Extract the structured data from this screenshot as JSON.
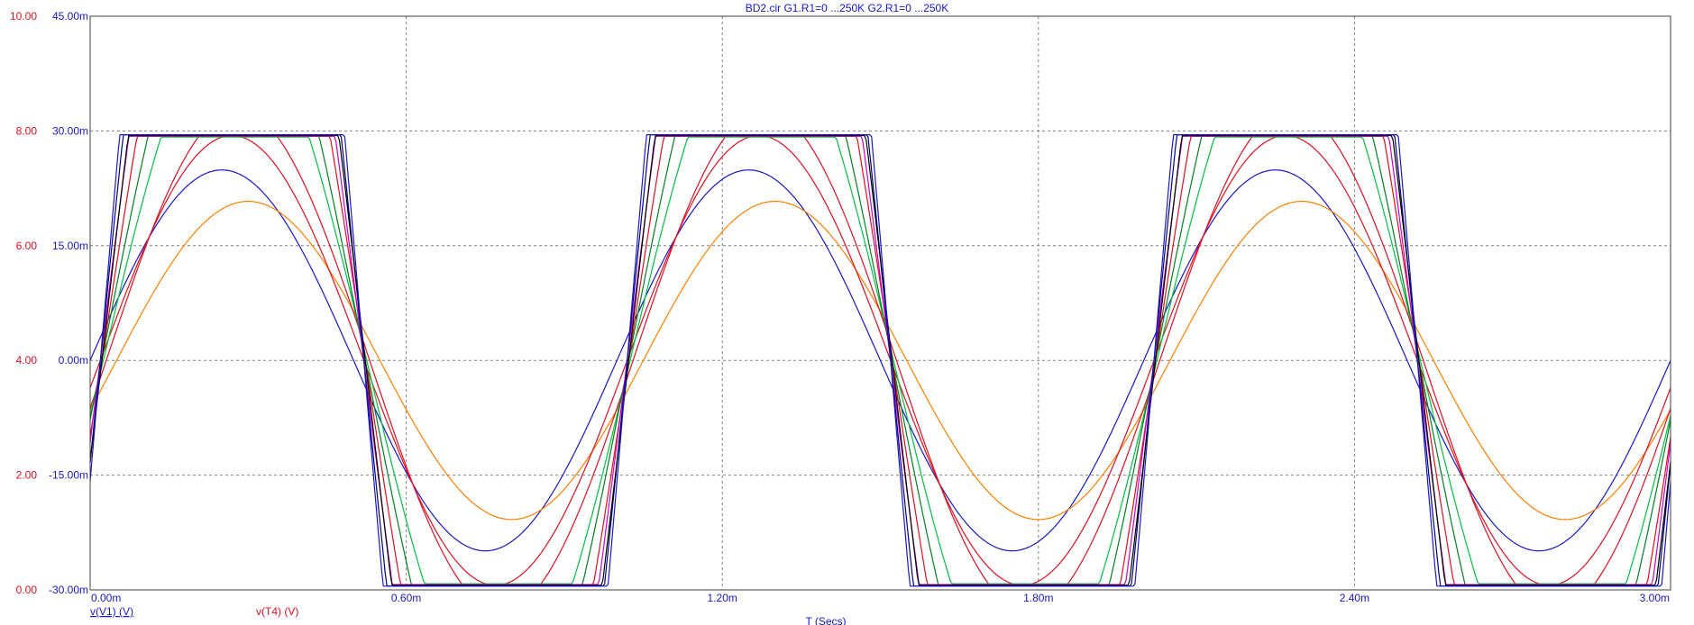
{
  "window": {
    "title": "BD2.cir G1.R1=0 ...250K G2.R1=0 ...250K"
  },
  "colors": {
    "left_axis": "#e01020",
    "right_axis": "#1818c8",
    "grid": "#808080",
    "frame": "#404040"
  },
  "chart_data": {
    "type": "line",
    "title": "BD2.cir G1.R1=0 ...250K G2.R1=0 ...250K",
    "xlabel": "T (Secs)",
    "x_range": [
      0,
      0.003
    ],
    "x_ticks": [
      "0.00m",
      "0.60m",
      "1.20m",
      "1.80m",
      "2.40m",
      "3.00m"
    ],
    "left_axis": {
      "range": [
        0,
        10
      ],
      "ticks": [
        "0.00",
        "2.00",
        "4.00",
        "6.00",
        "8.00",
        "10.00"
      ]
    },
    "right_axis": {
      "range": [
        -0.03,
        0.045
      ],
      "ticks": [
        "-30.00m",
        "-15.00m",
        "0.00m",
        "15.00m",
        "30.00m",
        "45.00m"
      ]
    },
    "grid": true,
    "frequency_hz": 1000,
    "legend": [
      {
        "label": "v(V1) (V)",
        "color": "#1818c8",
        "axis": "right"
      },
      {
        "label": "v(T4) (V)",
        "color": "#e01020",
        "axis": "left"
      }
    ],
    "series": [
      {
        "name": "v(V1) (V)",
        "color": "#1818c8",
        "axis": "right",
        "amplitude": 0.0249,
        "clip": 0.1,
        "phase_deg": 0
      },
      {
        "color": "#ff8000",
        "axis": "right",
        "amplitude": 0.0208,
        "clip": 0.1,
        "phase_deg": 18
      },
      {
        "color": "#e01020",
        "axis": "right",
        "amplitude": 0.0294,
        "clip": 0.1,
        "phase_deg": 7
      },
      {
        "color": "#e01020",
        "axis": "right",
        "amplitude": 0.0328,
        "clip": 0.0294,
        "phase_deg": 11
      },
      {
        "color": "#00c040",
        "axis": "right",
        "amplitude": 0.046,
        "clip": 0.0292,
        "phase_deg": 9
      },
      {
        "color": "#008020",
        "axis": "right",
        "amplitude": 0.056,
        "clip": 0.0294,
        "phase_deg": 8
      },
      {
        "color": "#e01020",
        "axis": "right",
        "amplitude": 0.072,
        "clip": 0.0293,
        "phase_deg": 8
      },
      {
        "color": "#cc00cc",
        "axis": "right",
        "amplitude": 0.088,
        "clip": 0.0293,
        "phase_deg": 7
      },
      {
        "color": "#000080",
        "axis": "right",
        "amplitude": 0.11,
        "clip": 0.0295,
        "phase_deg": 7
      },
      {
        "color": "#000000",
        "axis": "right",
        "amplitude": 0.095,
        "clip": 0.0294,
        "phase_deg": 8
      },
      {
        "color": "#1818c8",
        "axis": "right",
        "amplitude": 0.13,
        "clip": 0.0295,
        "phase_deg": 7
      }
    ]
  }
}
